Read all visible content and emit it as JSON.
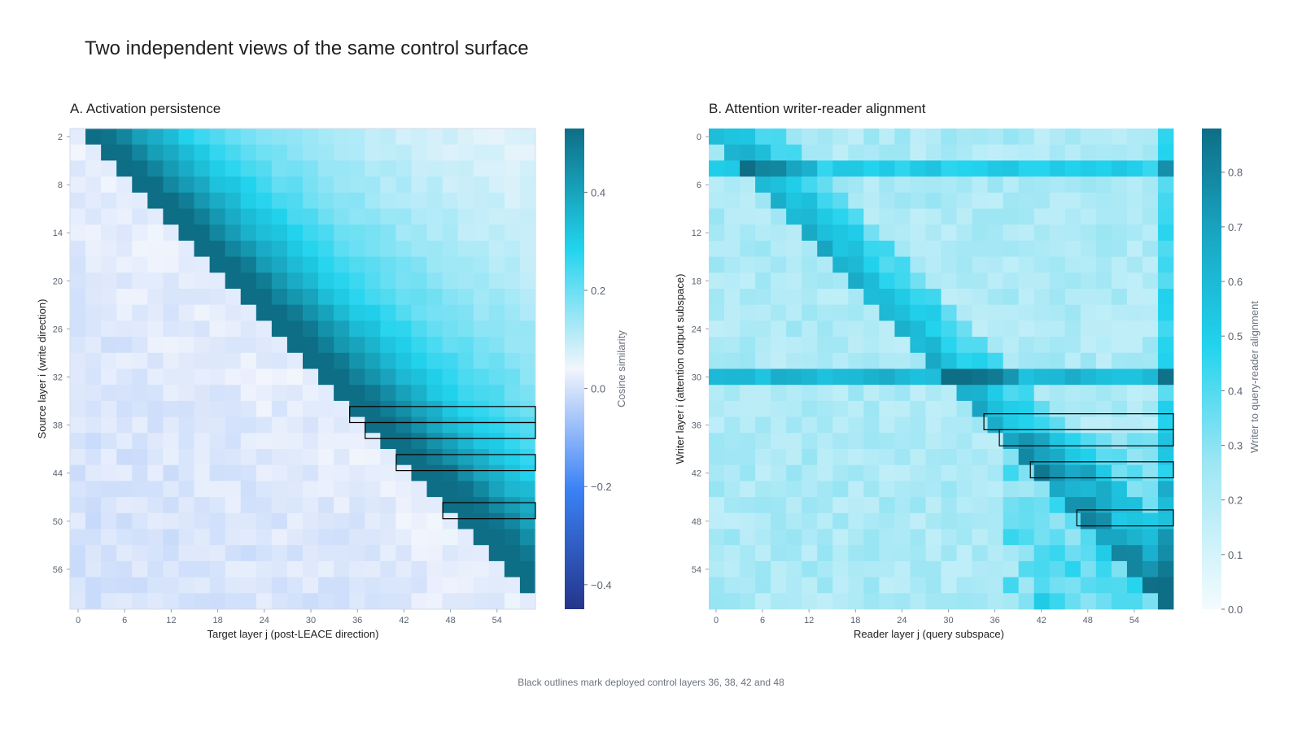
{
  "title": "Two independent views of the same control surface",
  "footnote": "Black outlines mark deployed control layers 36, 38, 42 and 48",
  "chart_data": [
    {
      "type": "heatmap",
      "title": "A. Activation persistence",
      "xlabel": "Target layer j (post-LEACE direction)",
      "ylabel": "Source layer i (write direction)",
      "colorbar_label": "Cosine similarity",
      "x_range": [
        0,
        59
      ],
      "y_range": [
        1,
        59
      ],
      "x_ticks": [
        "0",
        "6",
        "12",
        "18",
        "24",
        "30",
        "36",
        "42",
        "48",
        "54"
      ],
      "y_ticks": [
        "2",
        "8",
        "14",
        "20",
        "26",
        "32",
        "38",
        "44",
        "50",
        "56"
      ],
      "colorbar_ticks": [
        "0.4",
        "0.2",
        "0.0",
        "−0.2",
        "−0.4"
      ],
      "colorbar_range": [
        -0.45,
        0.53
      ],
      "colormap": "diverging blue-white-cyan",
      "structure": "upper triangle (j > i) high similarity decaying with distance from diagonal; lower triangle near zero",
      "outlined_rows": [
        36,
        38,
        42,
        48
      ]
    },
    {
      "type": "heatmap",
      "title": "B. Attention writer-reader alignment",
      "xlabel": "Reader layer j (query subspace)",
      "ylabel": "Writer layer i (attention output subspace)",
      "colorbar_label": "Writer to query-reader alignment",
      "x_range": [
        0,
        59
      ],
      "y_range": [
        0,
        59
      ],
      "x_ticks": [
        "0",
        "6",
        "12",
        "18",
        "24",
        "30",
        "36",
        "42",
        "48",
        "54"
      ],
      "y_ticks": [
        "0",
        "6",
        "12",
        "18",
        "24",
        "30",
        "36",
        "42",
        "48",
        "54"
      ],
      "colorbar_ticks": [
        "0.8",
        "0.7",
        "0.6",
        "0.5",
        "0.4",
        "0.3",
        "0.2",
        "0.1",
        "0.0"
      ],
      "colorbar_range": [
        0.0,
        0.88
      ],
      "colormap": "sequential white-cyan-teal",
      "outlined_rows": [
        36,
        38,
        42,
        48
      ]
    }
  ],
  "colors": {
    "neg_dark": "#24358a",
    "neg_mid": "#3b82f6",
    "zero": "#f2f5fc",
    "pos_mid": "#22d3ee",
    "pos_dark": "#0e6e86",
    "outline": "#000000"
  }
}
